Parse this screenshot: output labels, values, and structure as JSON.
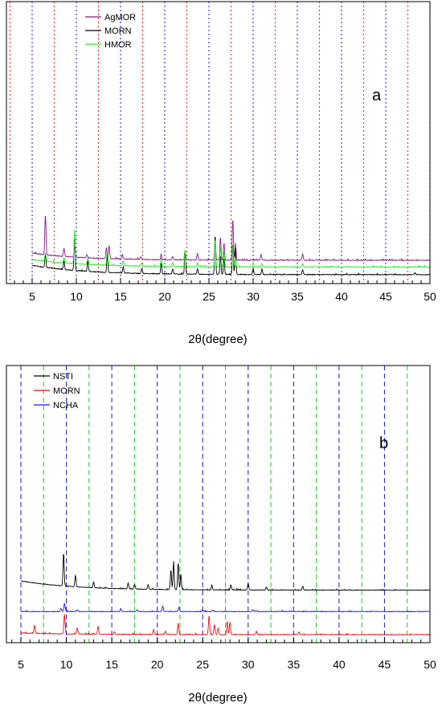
{
  "chart_data": [
    {
      "type": "line",
      "panel_label": "a",
      "xlabel": "2θ(degree)",
      "xlim": [
        1,
        50
      ],
      "x_ticks": [
        5,
        10,
        15,
        20,
        25,
        30,
        35,
        40,
        45,
        50
      ],
      "grid": "vertical dotted reference lines",
      "reference_lines": [
        {
          "color": "#e03030",
          "x": [
            2.5,
            7.5,
            12.5,
            17.5,
            22.5,
            27.5,
            32.5,
            37.5,
            42.5,
            47.5
          ]
        },
        {
          "color": "#2a2ad8",
          "x": [
            5,
            10,
            15,
            20,
            25,
            30,
            35,
            40,
            45,
            50
          ]
        }
      ],
      "legend_position": "top-left",
      "series": [
        {
          "name": "AgMOR",
          "color": "#8b1a8b",
          "baseline": 0.95,
          "start_rise": 0.42,
          "peaks": [
            [
              6.5,
              2.4
            ],
            [
              8.6,
              0.5
            ],
            [
              9.8,
              0.6
            ],
            [
              11.2,
              0.2
            ],
            [
              13.4,
              0.65
            ],
            [
              13.7,
              0.8
            ],
            [
              15.2,
              0.25
            ],
            [
              17.3,
              0.15
            ],
            [
              19.6,
              0.35
            ],
            [
              20.9,
              0.2
            ],
            [
              22.3,
              0.55
            ],
            [
              23.7,
              0.4
            ],
            [
              25.7,
              1.25
            ],
            [
              26.3,
              1.35
            ],
            [
              26.7,
              1.0
            ],
            [
              27.7,
              2.45
            ],
            [
              28.0,
              1.0
            ],
            [
              30.9,
              0.35
            ],
            [
              35.6,
              0.4
            ]
          ]
        },
        {
          "name": "MORN",
          "color": "#000000",
          "baseline": 0.1,
          "start_rise": 0.55,
          "peaks": [
            [
              6.5,
              0.8
            ],
            [
              8.6,
              0.5
            ],
            [
              9.8,
              2.2
            ],
            [
              11.3,
              0.65
            ],
            [
              13.5,
              1.0
            ],
            [
              15.3,
              0.35
            ],
            [
              17.4,
              0.3
            ],
            [
              19.6,
              0.6
            ],
            [
              20.9,
              0.3
            ],
            [
              22.3,
              1.35
            ],
            [
              23.7,
              0.35
            ],
            [
              25.7,
              2.3
            ],
            [
              26.3,
              1.1
            ],
            [
              26.7,
              0.95
            ],
            [
              27.7,
              1.75
            ],
            [
              28.0,
              1.55
            ],
            [
              30.0,
              0.35
            ],
            [
              31.0,
              0.35
            ],
            [
              35.6,
              0.3
            ],
            [
              48.3,
              0.08
            ]
          ]
        },
        {
          "name": "HMOR",
          "color": "#22ee22",
          "baseline": 0.55,
          "start_rise": 0.45,
          "peaks": [
            [
              6.5,
              0.5
            ],
            [
              8.6,
              0.35
            ],
            [
              9.8,
              2.0
            ],
            [
              11.3,
              0.4
            ],
            [
              13.5,
              0.85
            ],
            [
              15.3,
              0.3
            ],
            [
              17.4,
              0.2
            ],
            [
              19.6,
              0.5
            ],
            [
              20.9,
              0.25
            ],
            [
              22.3,
              1.0
            ],
            [
              23.7,
              0.25
            ],
            [
              25.7,
              1.6
            ],
            [
              26.3,
              1.15
            ],
            [
              26.7,
              0.95
            ],
            [
              27.7,
              1.25
            ],
            [
              28.0,
              0.6
            ],
            [
              30.0,
              0.25
            ],
            [
              31.0,
              0.2
            ],
            [
              35.6,
              0.2
            ]
          ]
        }
      ]
    },
    {
      "type": "line",
      "panel_label": "b",
      "xlabel": "2θ(degree)",
      "xlim": [
        4,
        50
      ],
      "x_ticks": [
        5,
        10,
        15,
        20,
        25,
        30,
        35,
        40,
        45,
        50
      ],
      "grid": "vertical dashed reference lines",
      "reference_lines": [
        {
          "color": "#2a2ad8",
          "x": [
            5,
            10,
            15,
            20,
            25,
            30,
            35,
            40,
            45
          ]
        },
        {
          "color": "#33cc33",
          "x": [
            7.5,
            12.5,
            17.5,
            22.5,
            27.5,
            32.5,
            37.5,
            42.5,
            47.5
          ]
        }
      ],
      "legend_position": "top-left",
      "series": [
        {
          "name": "NSTI",
          "color": "#000000",
          "baseline": 1.35,
          "start_rise": 0.28,
          "peaks": [
            [
              9.7,
              1.0
            ],
            [
              11.0,
              0.35
            ],
            [
              13.0,
              0.18
            ],
            [
              16.8,
              0.18
            ],
            [
              17.5,
              0.15
            ],
            [
              19.0,
              0.15
            ],
            [
              21.5,
              0.6
            ],
            [
              21.8,
              0.82
            ],
            [
              22.3,
              0.82
            ],
            [
              22.6,
              0.45
            ],
            [
              26.0,
              0.15
            ],
            [
              28.1,
              0.15
            ],
            [
              30.0,
              0.2
            ],
            [
              32.0,
              0.1
            ],
            [
              36.0,
              0.12
            ]
          ]
        },
        {
          "name": "MORN",
          "color": "#ee1111",
          "baseline": 0.0,
          "start_rise": 0.05,
          "peaks": [
            [
              6.5,
              0.25
            ],
            [
              9.8,
              0.6
            ],
            [
              11.2,
              0.18
            ],
            [
              13.5,
              0.25
            ],
            [
              15.3,
              0.08
            ],
            [
              19.6,
              0.15
            ],
            [
              20.9,
              0.1
            ],
            [
              22.3,
              0.35
            ],
            [
              25.7,
              0.58
            ],
            [
              26.3,
              0.3
            ],
            [
              26.7,
              0.2
            ],
            [
              27.7,
              0.4
            ],
            [
              28.0,
              0.38
            ],
            [
              30.9,
              0.1
            ],
            [
              35.6,
              0.08
            ]
          ]
        },
        {
          "name": "NCHA",
          "color": "#1a1aee",
          "baseline": 0.7,
          "start_rise": 0.0,
          "peaks": [
            [
              9.4,
              0.1
            ],
            [
              9.8,
              0.25
            ],
            [
              11.2,
              0.05
            ],
            [
              16.0,
              0.08
            ],
            [
              17.8,
              0.06
            ],
            [
              20.6,
              0.17
            ],
            [
              22.4,
              0.14
            ],
            [
              25.0,
              0.05
            ],
            [
              26.1,
              0.05
            ],
            [
              30.5,
              0.06
            ],
            [
              30.9,
              0.04
            ]
          ]
        }
      ]
    }
  ]
}
